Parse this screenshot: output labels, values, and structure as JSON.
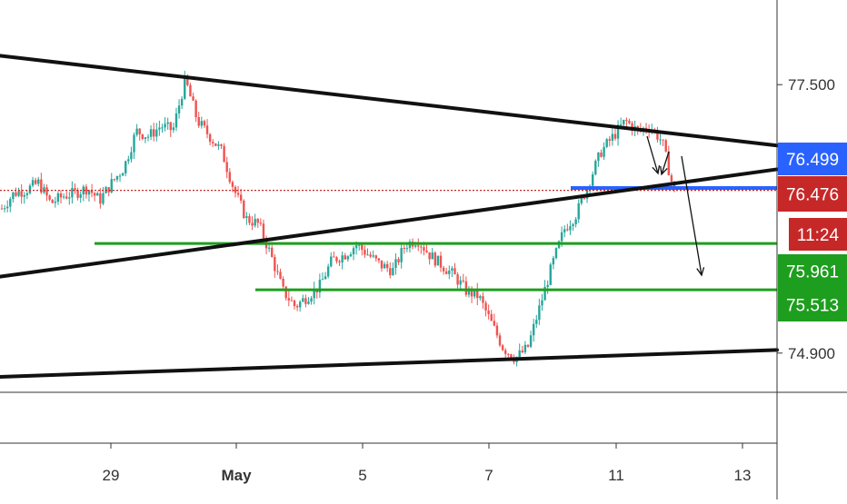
{
  "chart_data": {
    "type": "candlestick",
    "title": "",
    "xlabel": "",
    "ylabel": "",
    "x_ticks": [
      "29",
      "May",
      "5",
      "7",
      "11",
      "13"
    ],
    "y_ticks": [
      "77.500",
      "74.900"
    ],
    "ylim": [
      74.52,
      78.32
    ],
    "price_labels": [
      {
        "value": 76.499,
        "text": "76.499",
        "color": "#2962ff",
        "kind": "last-price"
      },
      {
        "value": 76.476,
        "text": "76.476",
        "color": "#c62828",
        "kind": "current"
      },
      {
        "value": 76.0,
        "text": "11:24",
        "color": "#c62828",
        "kind": "countdown"
      },
      {
        "value": 75.961,
        "text": "75.961",
        "color": "#1e9e1e",
        "kind": "support"
      },
      {
        "value": 75.513,
        "text": "75.513",
        "color": "#1e9e1e",
        "kind": "support"
      }
    ],
    "horizontal_levels": [
      {
        "name": "support-upper",
        "value": 75.961,
        "color": "#1e9e1e"
      },
      {
        "name": "support-lower",
        "value": 75.513,
        "color": "#1e9e1e"
      },
      {
        "name": "resistance-short",
        "value": 76.499,
        "color": "#2962ff"
      },
      {
        "name": "last-price-dotted",
        "value": 76.476,
        "color": "#c62828"
      }
    ],
    "trendlines": [
      {
        "name": "upper-trendline",
        "from": {
          "x": 0.0,
          "y": 77.78
        },
        "to": {
          "x": 1.0,
          "y": 76.91
        }
      },
      {
        "name": "middle-trendline",
        "from": {
          "x": 0.0,
          "y": 75.64
        },
        "to": {
          "x": 1.0,
          "y": 76.68
        }
      },
      {
        "name": "lower-trendline",
        "from": {
          "x": 0.0,
          "y": 74.67
        },
        "to": {
          "x": 1.0,
          "y": 74.93
        }
      }
    ],
    "price_path": [
      76.3,
      76.45,
      76.48,
      76.55,
      76.35,
      76.42,
      76.45,
      76.5,
      76.38,
      76.55,
      76.7,
      77.05,
      77.0,
      77.1,
      77.06,
      77.55,
      77.15,
      77.0,
      76.85,
      76.48,
      76.2,
      76.15,
      75.85,
      75.5,
      75.35,
      75.45,
      75.55,
      75.8,
      75.85,
      75.95,
      75.85,
      75.75,
      75.7,
      75.95,
      76.0,
      75.85,
      75.75,
      75.65,
      75.5,
      75.45,
      75.2,
      74.95,
      74.85,
      74.95,
      75.35,
      75.75,
      76.1,
      76.25,
      76.55,
      76.85,
      77.0,
      77.15,
      77.05,
      77.1,
      76.95,
      76.45
    ]
  },
  "colors": {
    "up_candle": "#26a69a",
    "down_candle": "#ef5350",
    "trendline": "#111111",
    "axis": "#333333",
    "projection_arrow": "#111111"
  }
}
